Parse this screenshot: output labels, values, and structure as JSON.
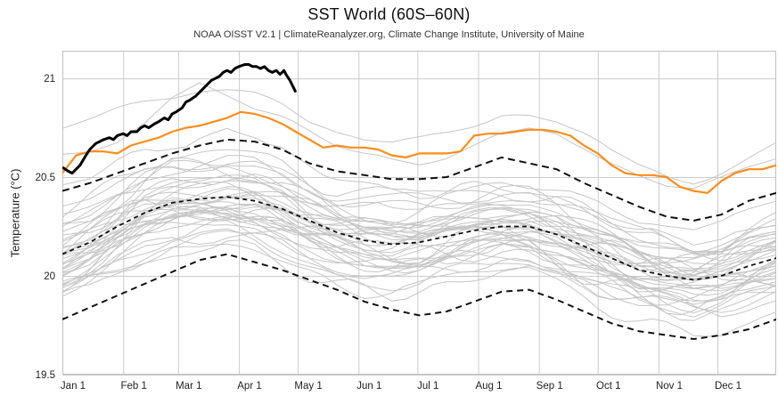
{
  "chart_data": {
    "type": "line",
    "title": "SST World (60S–60N)",
    "subtitle": "NOAA OISST V2.1 | ClimateReanalyzer.org, Climate Change Institute, University of Maine",
    "ylabel": "Temperature (°C)",
    "ylim": [
      19.5,
      21.14
    ],
    "grid": true,
    "legend_position": "none",
    "yticks": [
      {
        "value": 19.5,
        "label": "19.5"
      },
      {
        "value": 20,
        "label": "20"
      },
      {
        "value": 20.5,
        "label": "20.5"
      },
      {
        "value": 21,
        "label": "21"
      }
    ],
    "months": {
      "labels": [
        "Jan 1",
        "Feb 1",
        "Mar 1",
        "Apr 1",
        "May 1",
        "Jun 1",
        "Jul 1",
        "Aug 1",
        "Sep 1",
        "Oct 1",
        "Nov 1",
        "Dec 1"
      ],
      "start_days": [
        0,
        31,
        59,
        90,
        120,
        151,
        181,
        212,
        243,
        273,
        304,
        334
      ]
    },
    "days_per_year": 365,
    "axes": {
      "grid_color": "#cccccc",
      "axis_color": "#c0c0c0",
      "label_color": "#222222"
    },
    "series": {
      "sigma_upper": {
        "name": "plus 2 sigma (1982-2011)",
        "style": "dashed",
        "color": "#111111",
        "step_days": 14,
        "values": [
          20.43,
          20.47,
          20.52,
          20.57,
          20.62,
          20.66,
          20.69,
          20.68,
          20.64,
          20.57,
          20.53,
          20.51,
          20.49,
          20.49,
          20.5,
          20.55,
          20.6,
          20.57,
          20.54,
          20.47,
          20.41,
          20.35,
          20.3,
          20.28,
          20.31,
          20.38,
          20.42
        ]
      },
      "mean": {
        "name": "1982-2011 mean",
        "style": "dashed",
        "color": "#111111",
        "step_days": 14,
        "values": [
          20.11,
          20.17,
          20.25,
          20.32,
          20.37,
          20.39,
          20.4,
          20.38,
          20.34,
          20.28,
          20.22,
          20.18,
          20.16,
          20.17,
          20.2,
          20.23,
          20.25,
          20.25,
          20.21,
          20.15,
          20.09,
          20.03,
          20.0,
          19.98,
          20.0,
          20.05,
          20.09
        ]
      },
      "sigma_lower": {
        "name": "minus 2 sigma (1982-2011)",
        "style": "dashed",
        "color": "#111111",
        "step_days": 14,
        "values": [
          19.78,
          19.84,
          19.9,
          19.96,
          20.02,
          20.08,
          20.11,
          20.07,
          20.03,
          19.98,
          19.93,
          19.87,
          19.83,
          19.8,
          19.82,
          19.87,
          19.92,
          19.93,
          19.88,
          19.82,
          19.76,
          19.72,
          19.7,
          19.68,
          19.7,
          19.73,
          19.78
        ]
      },
      "previous_year_orange": {
        "name": "2023",
        "style": "solid",
        "color": "#ff8c1a",
        "step_days": 7,
        "values": [
          20.52,
          20.61,
          20.63,
          20.63,
          20.62,
          20.66,
          20.68,
          20.7,
          20.73,
          20.75,
          20.76,
          20.78,
          20.8,
          20.83,
          20.82,
          20.8,
          20.77,
          20.73,
          20.69,
          20.65,
          20.66,
          20.65,
          20.65,
          20.64,
          20.61,
          20.6,
          20.62,
          20.62,
          20.62,
          20.63,
          20.71,
          20.72,
          20.72,
          20.73,
          20.74,
          20.74,
          20.73,
          20.71,
          20.66,
          20.62,
          20.56,
          20.52,
          20.51,
          20.51,
          20.5,
          20.45,
          20.43,
          20.42,
          20.48,
          20.52,
          20.54,
          20.54,
          20.56
        ]
      },
      "current_year_black": {
        "name": "2024",
        "style": "solid",
        "color": "#000000",
        "points": [
          [
            0,
            20.55
          ],
          [
            3,
            20.53
          ],
          [
            5,
            20.52
          ],
          [
            7,
            20.54
          ],
          [
            9,
            20.56
          ],
          [
            12,
            20.61
          ],
          [
            14,
            20.64
          ],
          [
            17,
            20.67
          ],
          [
            19,
            20.68
          ],
          [
            21,
            20.69
          ],
          [
            24,
            20.7
          ],
          [
            26,
            20.69
          ],
          [
            28,
            20.71
          ],
          [
            31,
            20.72
          ],
          [
            33,
            20.71
          ],
          [
            35,
            20.73
          ],
          [
            38,
            20.73
          ],
          [
            40,
            20.75
          ],
          [
            42,
            20.76
          ],
          [
            44,
            20.75
          ],
          [
            47,
            20.77
          ],
          [
            49,
            20.78
          ],
          [
            52,
            20.8
          ],
          [
            54,
            20.79
          ],
          [
            56,
            20.82
          ],
          [
            58,
            20.83
          ],
          [
            61,
            20.85
          ],
          [
            63,
            20.88
          ],
          [
            65,
            20.89
          ],
          [
            68,
            20.91
          ],
          [
            70,
            20.93
          ],
          [
            72,
            20.95
          ],
          [
            74,
            20.97
          ],
          [
            76,
            20.99
          ],
          [
            78,
            21.0
          ],
          [
            80,
            21.01
          ],
          [
            82,
            21.03
          ],
          [
            84,
            21.04
          ],
          [
            86,
            21.03
          ],
          [
            88,
            21.05
          ],
          [
            90,
            21.06
          ],
          [
            93,
            21.07
          ],
          [
            95,
            21.07
          ],
          [
            97,
            21.06
          ],
          [
            99,
            21.06
          ],
          [
            101,
            21.05
          ],
          [
            103,
            21.06
          ],
          [
            105,
            21.04
          ],
          [
            107,
            21.03
          ],
          [
            109,
            21.04
          ],
          [
            111,
            21.02
          ],
          [
            113,
            21.04
          ],
          [
            114,
            21.02
          ],
          [
            116,
            20.99
          ],
          [
            117,
            20.97
          ],
          [
            118,
            20.95
          ],
          [
            119,
            20.93
          ]
        ]
      }
    },
    "background_years": {
      "name": "1981-2022 individual years",
      "color": "#c6c6c6",
      "offsets_start_end": [
        [
          -0.2,
          -0.16
        ],
        [
          -0.17,
          -0.1
        ],
        [
          -0.06,
          -0.16
        ],
        [
          -0.22,
          -0.28
        ],
        [
          -0.24,
          -0.18
        ],
        [
          -0.18,
          -0.1
        ],
        [
          -0.08,
          -0.02
        ],
        [
          -0.04,
          -0.16
        ],
        [
          -0.2,
          -0.12
        ],
        [
          -0.12,
          -0.08
        ],
        [
          -0.1,
          -0.04
        ],
        [
          -0.06,
          -0.12
        ],
        [
          -0.09,
          -0.06
        ],
        [
          -0.1,
          -0.02
        ],
        [
          -0.01,
          -0.06
        ],
        [
          -0.12,
          -0.08
        ],
        [
          -0.07,
          0.1
        ],
        [
          0.14,
          -0.04
        ],
        [
          -0.08,
          -0.06
        ],
        [
          -0.07,
          -0.02
        ],
        [
          -0.03,
          0.02
        ],
        [
          0.0,
          0.05
        ],
        [
          0.05,
          0.05
        ],
        [
          0.02,
          0.06
        ],
        [
          0.07,
          0.04
        ],
        [
          0.02,
          0.08
        ],
        [
          0.06,
          -0.01
        ],
        [
          -0.03,
          0.03
        ],
        [
          0.01,
          0.1
        ],
        [
          0.12,
          0.01
        ],
        [
          -0.02,
          0.04
        ],
        [
          0.01,
          0.08
        ],
        [
          0.05,
          0.09
        ],
        [
          0.08,
          0.15
        ],
        [
          0.12,
          0.28
        ],
        [
          0.32,
          0.16
        ],
        [
          0.2,
          0.14
        ],
        [
          0.12,
          0.13
        ],
        [
          0.15,
          0.2
        ],
        [
          0.24,
          0.16
        ]
      ],
      "warm_outliers": [
        {
          "step_days": 14,
          "values": [
            20.77,
            20.81,
            20.85,
            20.87,
            20.89,
            20.92,
            20.93,
            20.92,
            20.88,
            20.8,
            20.74,
            20.7,
            20.68,
            20.7,
            20.73,
            20.77,
            20.81,
            20.8,
            20.77,
            20.7,
            20.62,
            20.56,
            20.52,
            20.5,
            20.54,
            20.6,
            20.66
          ]
        },
        {
          "step_days": 14,
          "values": [
            20.6,
            20.62,
            20.66,
            20.76,
            20.9,
            20.99,
            20.93,
            20.86,
            20.81,
            20.74,
            20.67,
            20.62,
            20.59,
            20.58,
            20.61,
            20.66,
            20.72,
            20.74,
            20.71,
            20.64,
            20.56,
            20.5,
            20.46,
            20.45,
            20.5,
            20.55,
            20.58
          ]
        }
      ]
    }
  }
}
